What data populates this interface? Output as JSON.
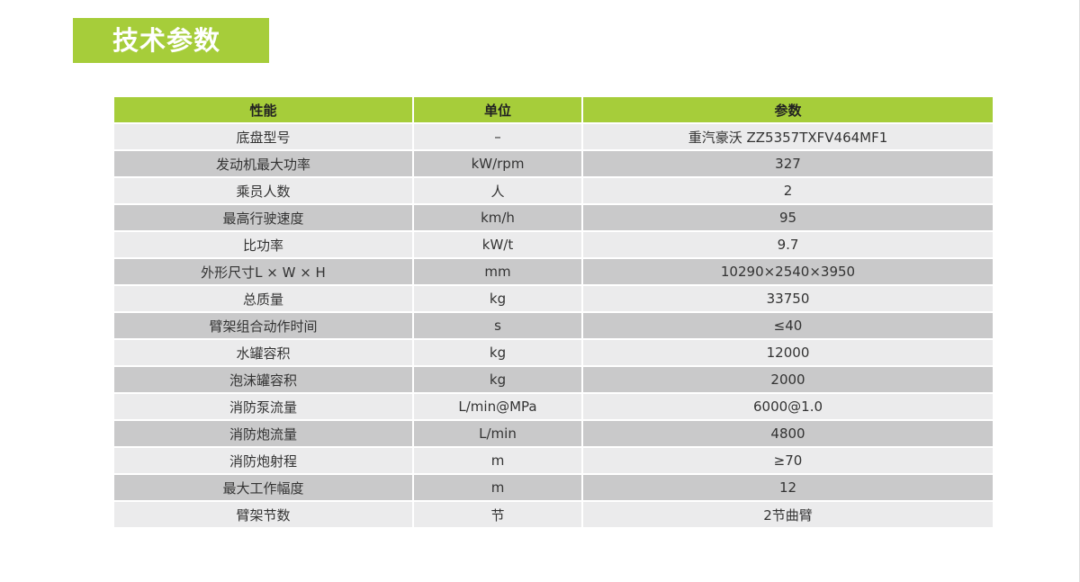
{
  "title": "技术参数",
  "headers": [
    "性能",
    "单位",
    "参数"
  ],
  "rows": [
    [
      "底盘型号",
      "–",
      "重汽豪沃 ZZ5357TXFV464MF1"
    ],
    [
      "发动机最大功率",
      "kW/rpm",
      "327"
    ],
    [
      "乘员人数",
      "人",
      "2"
    ],
    [
      "最高行驶速度",
      "km/h",
      "95"
    ],
    [
      "比功率",
      "kW/t",
      "9.7"
    ],
    [
      "外形尺寸L × W × H",
      "mm",
      "10290×2540×3950"
    ],
    [
      "总质量",
      "kg",
      "33750"
    ],
    [
      "臂架组合动作时间",
      "s",
      "≤40"
    ],
    [
      "水罐容积",
      "kg",
      "12000"
    ],
    [
      "泡沫罐容积",
      "kg",
      "2000"
    ],
    [
      "消防泵流量",
      "L/min@MPa",
      "6000@1.0"
    ],
    [
      "消防炮流量",
      "L/min",
      "4800"
    ],
    [
      "消防炮射程",
      "m",
      "≥70"
    ],
    [
      "最大工作幅度",
      "m",
      "12"
    ],
    [
      "臂架节数",
      "节",
      "2节曲臂"
    ]
  ],
  "colors": {
    "accent": "#a6cd3a",
    "row_light": "#ebebec",
    "row_dark": "#c9c9ca"
  }
}
